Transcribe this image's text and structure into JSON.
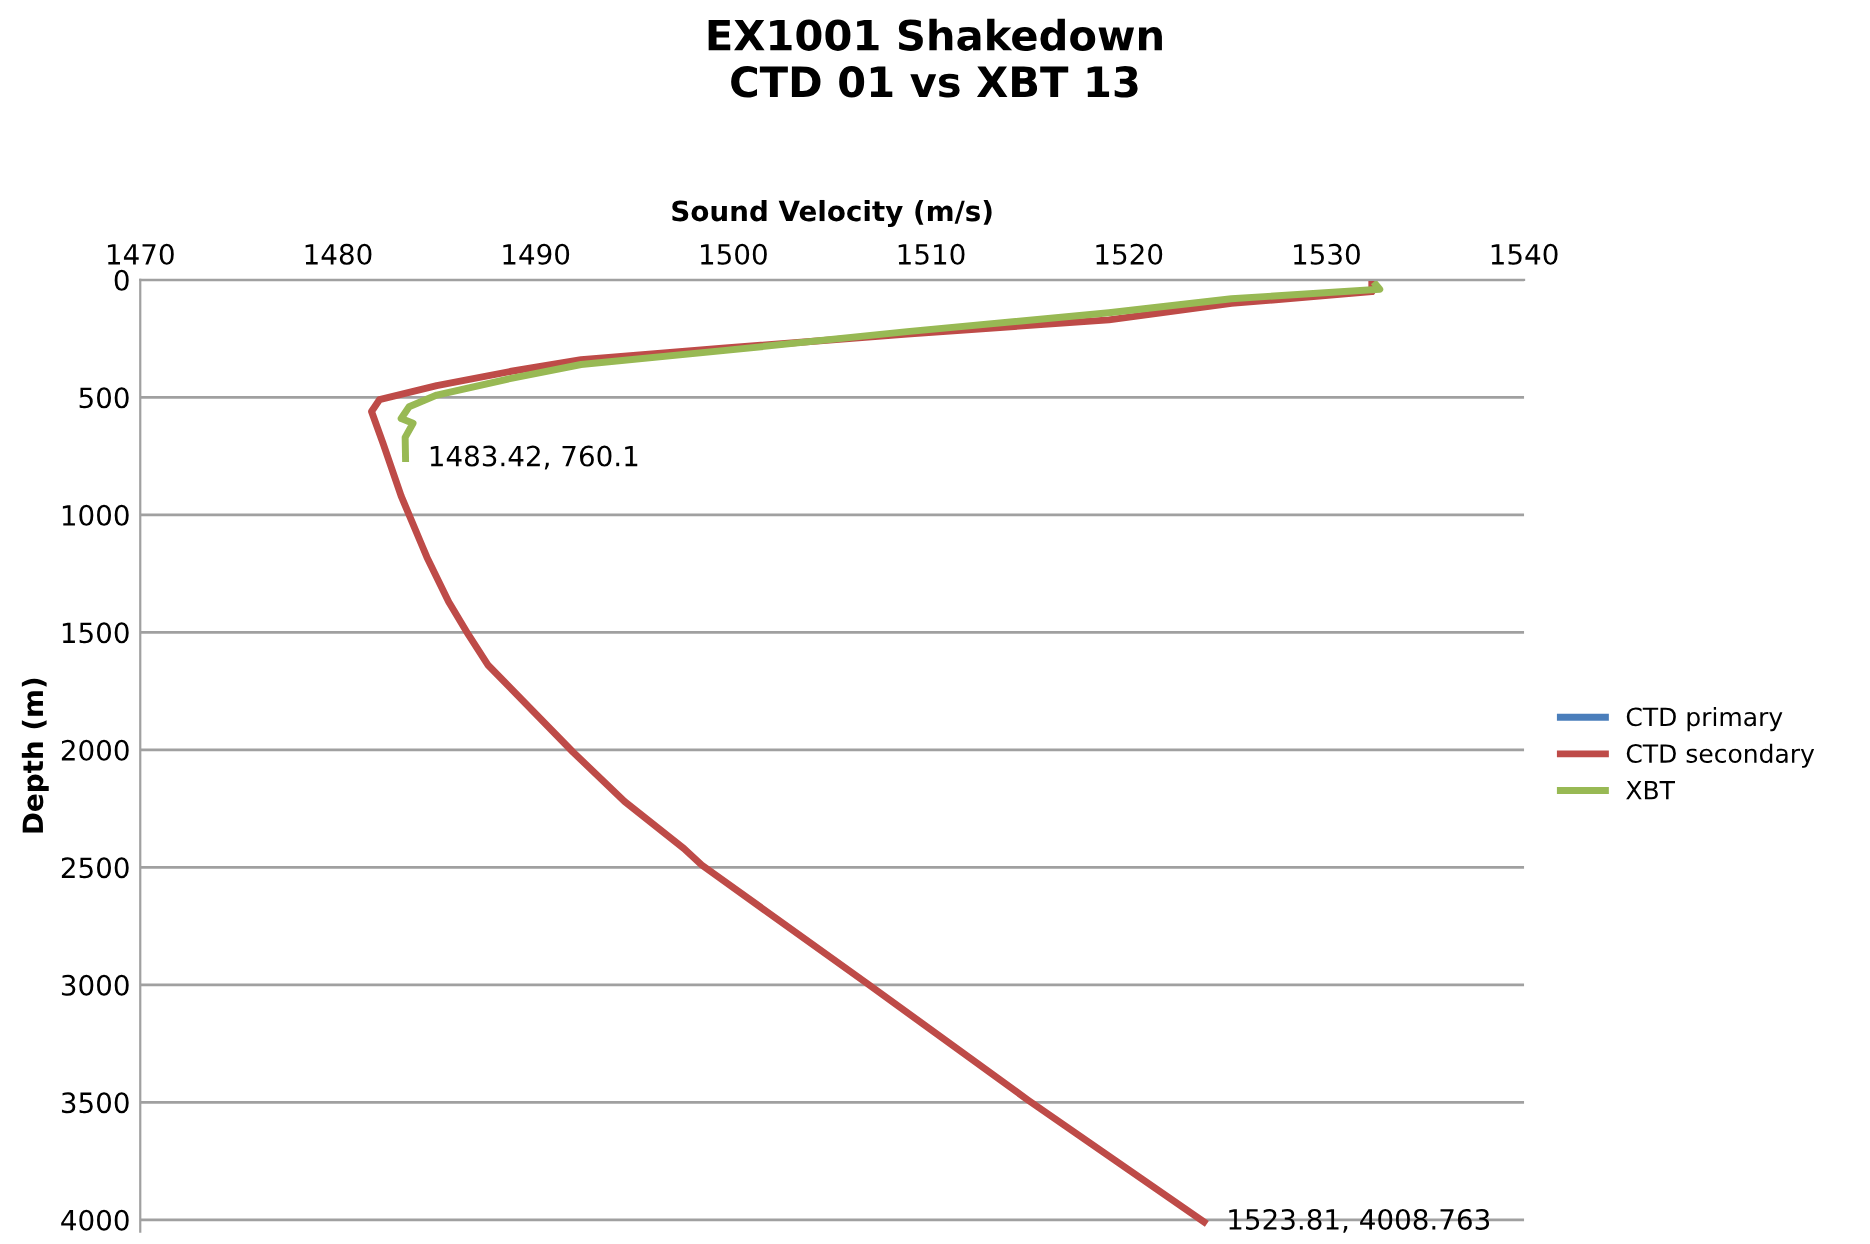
{
  "chart_data": {
    "type": "line",
    "title": "EX1001 Shakedown\nCTD 01 vs XBT 13",
    "xlabel": "Sound Velocity (m/s)",
    "ylabel": "Depth (m)",
    "xlim": [
      1470,
      1540
    ],
    "xticks": [
      1470,
      1480,
      1490,
      1500,
      1510,
      1520,
      1530,
      1540
    ],
    "ylim": [
      4050,
      0
    ],
    "yticks": [
      0,
      500,
      1000,
      1500,
      2000,
      2500,
      3000,
      3500,
      4000
    ],
    "grid": "y",
    "legend": "right",
    "line_style": "solid",
    "marker": "none",
    "series": [
      {
        "name": "CTD primary",
        "color": "#4a7ebb",
        "x": [
          null
        ],
        "values": [
          null
        ]
      },
      {
        "name": "CTD secondary",
        "color": "#be4b48",
        "x": [
          1532.3,
          1532.3,
          1525.2,
          1519.0,
          1508.8,
          1499.6,
          1492.3,
          1488.7,
          1485.0,
          1482.1,
          1481.7,
          1482.3,
          1483.2,
          1484.3,
          1484.5,
          1485.6,
          1486.6,
          1487.6,
          1491.9,
          1494.5,
          1497.5,
          1498.4,
          1506.7,
          1514.9,
          1523.81
        ],
        "values": [
          10,
          50,
          100,
          170,
          230,
          290,
          340,
          390,
          450,
          510,
          560,
          700,
          920,
          1140,
          1180,
          1370,
          1510,
          1640,
          2010,
          2220,
          2420,
          2490,
          2990,
          3490,
          4008.763
        ]
      },
      {
        "name": "XBT",
        "color": "#98b954",
        "x": [
          1532.5,
          1532.7,
          1525.2,
          1519.0,
          1508.8,
          1499.6,
          1492.3,
          1488.7,
          1485.0,
          1483.6,
          1483.2,
          1483.8,
          1483.4,
          1483.42
        ],
        "values": [
          20,
          40,
          80,
          140,
          220,
          300,
          360,
          420,
          490,
          540,
          590,
          610,
          670,
          760.1
        ]
      }
    ],
    "annotations": [
      {
        "text": "1483.42, 760.1",
        "x": 1483.42,
        "y": 760.1
      },
      {
        "text": "1523.81, 4008.763",
        "x": 1523.81,
        "y": 4008.763
      }
    ]
  }
}
